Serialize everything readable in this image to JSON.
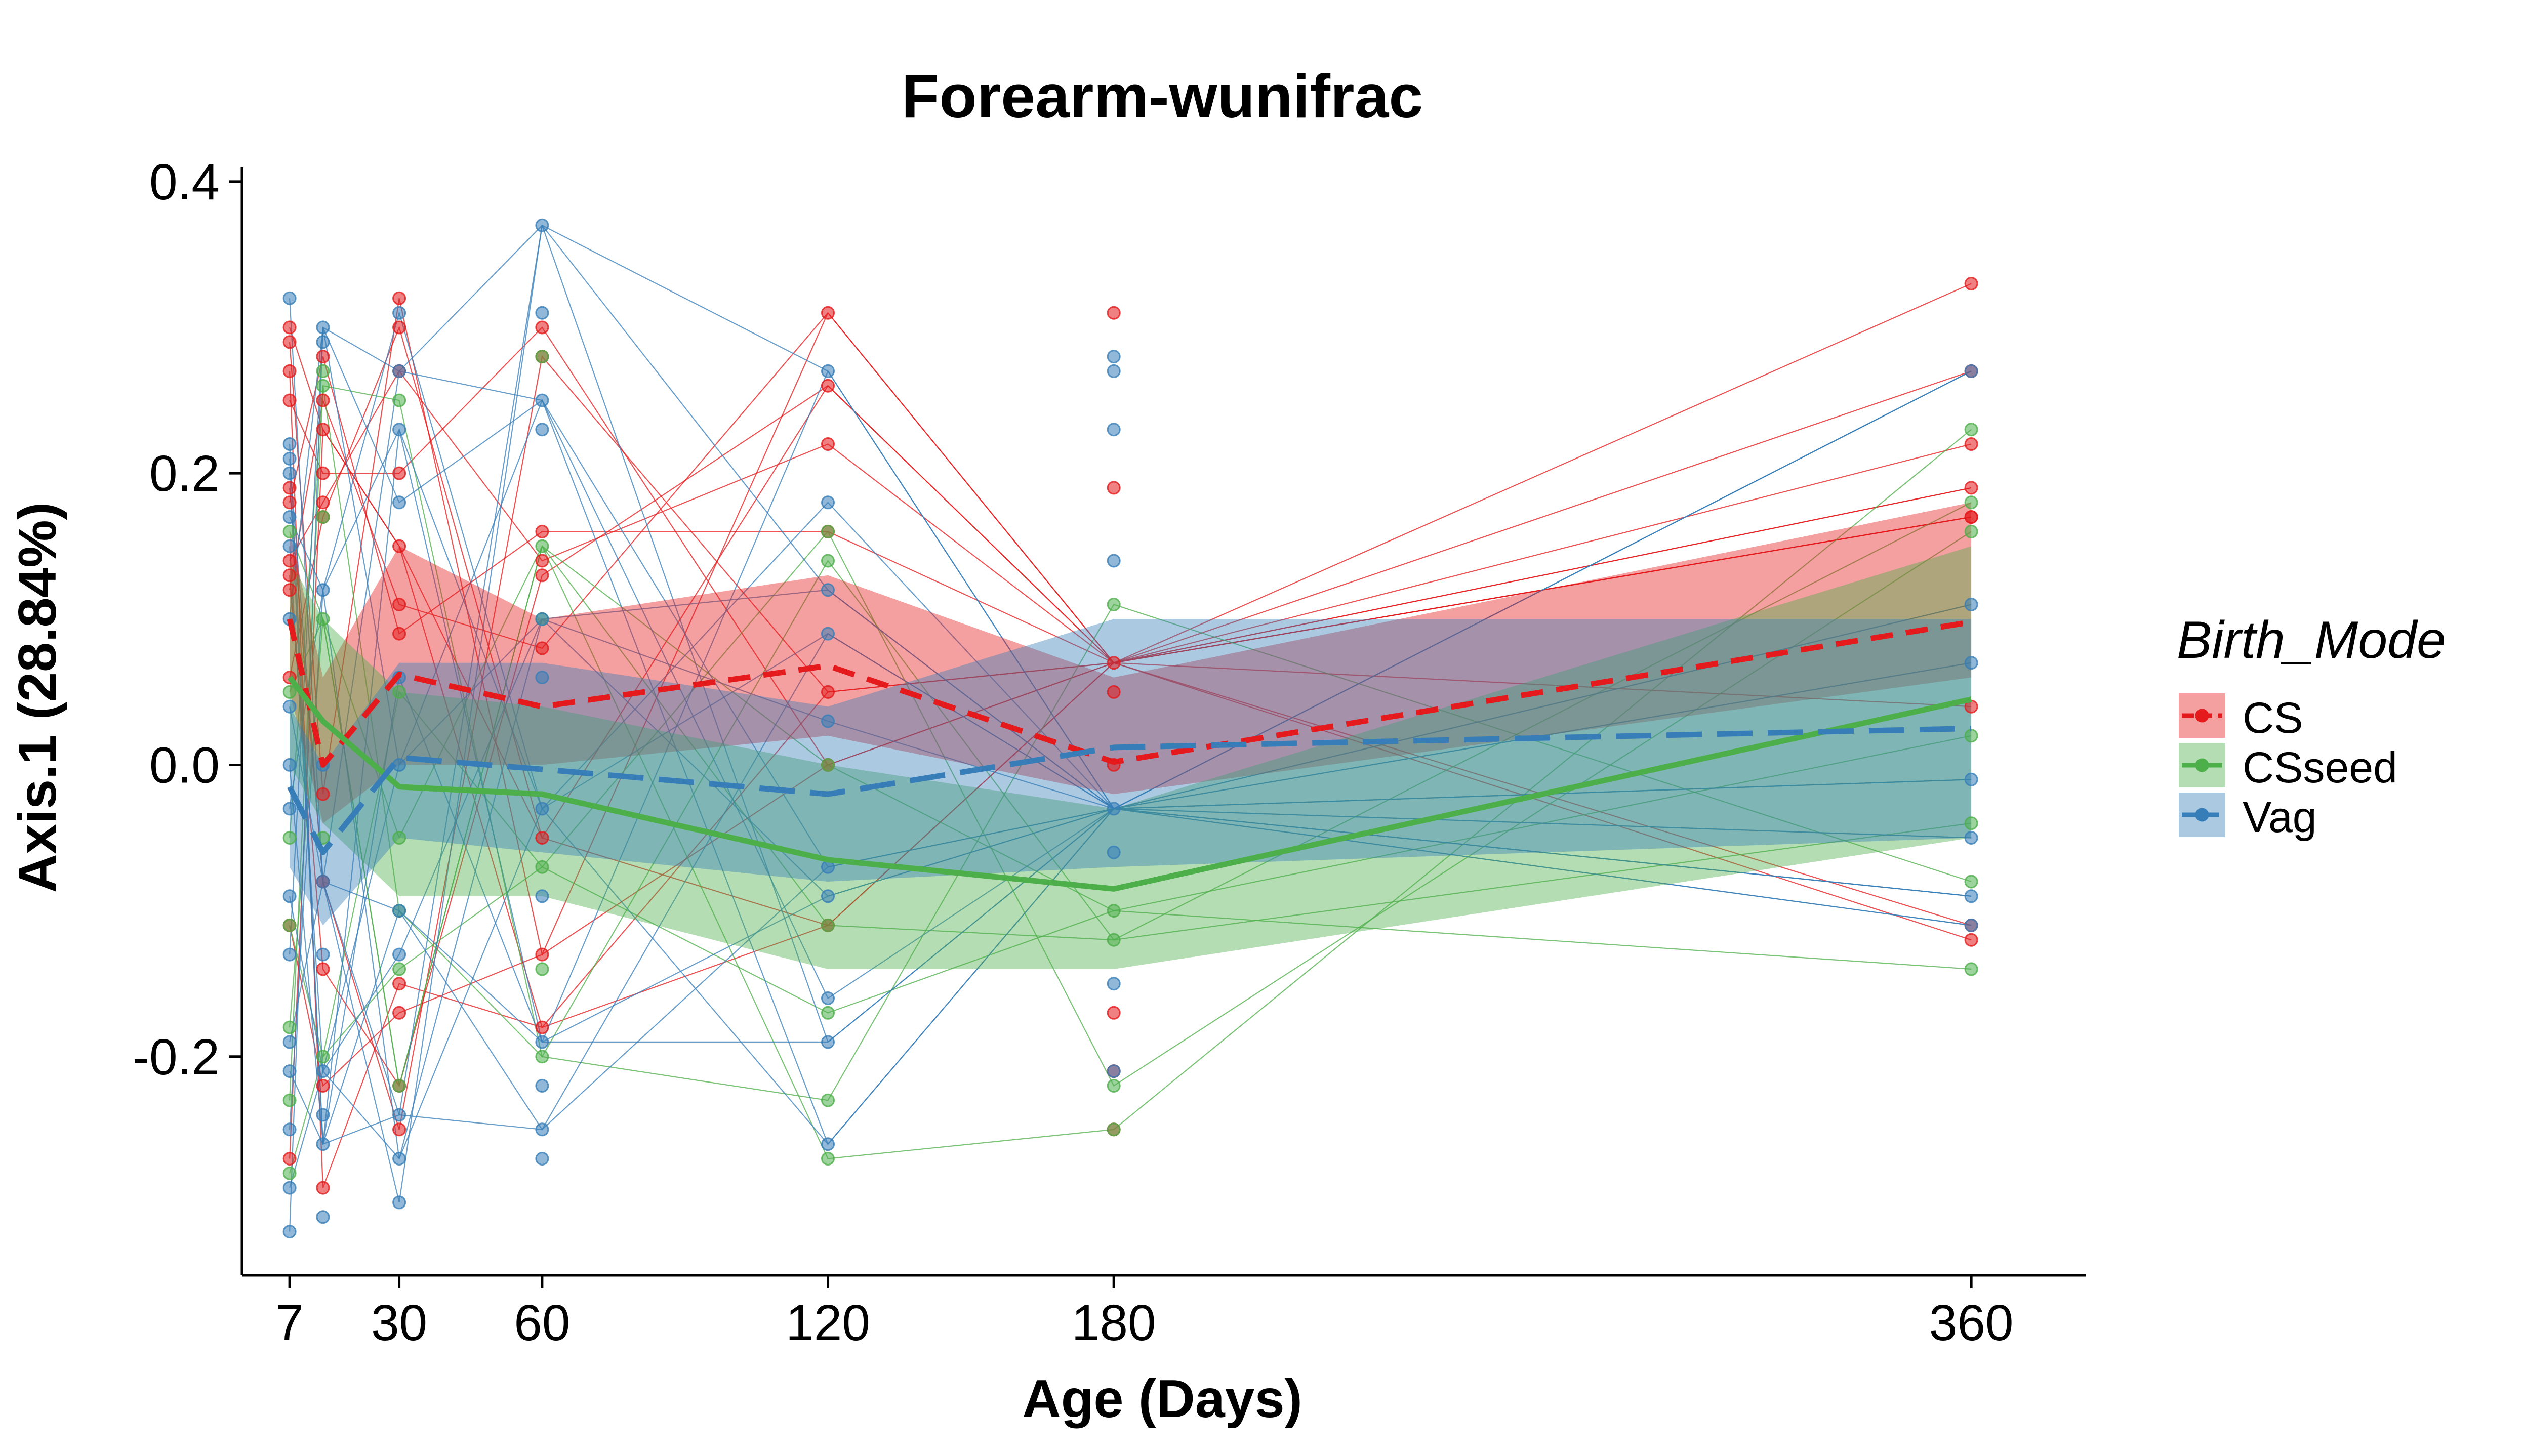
{
  "chart_data": {
    "type": "line",
    "title": "Forearm-wunifrac",
    "xlabel": "Age (Days)",
    "ylabel": "Axis.1 (28.84%)",
    "xlim": [
      -3,
      384
    ],
    "ylim": [
      -0.35,
      0.41
    ],
    "x_ticks": [
      7,
      30,
      60,
      120,
      180,
      360
    ],
    "x_tick_labels": [
      "7",
      "30",
      "60",
      "120",
      "180",
      "360"
    ],
    "y_ticks": [
      -0.2,
      0.0,
      0.2,
      0.4
    ],
    "y_tick_labels": [
      "-0.2",
      "0.0",
      "0.2",
      "0.4"
    ],
    "legend": {
      "title": "Birth_Mode",
      "position": "right"
    },
    "grid": false,
    "series": [
      {
        "name": "CS",
        "color": "#E41A1C",
        "linetype": "dashed",
        "mean": [
          [
            7,
            0.1
          ],
          [
            14,
            0.0
          ],
          [
            30,
            0.062
          ],
          [
            60,
            0.04
          ],
          [
            120,
            0.068
          ],
          [
            180,
            0.002
          ],
          [
            360,
            0.098
          ]
        ],
        "ribbon_low": [
          [
            7,
            0.05
          ],
          [
            14,
            -0.04
          ],
          [
            30,
            0.0
          ],
          [
            60,
            0.0
          ],
          [
            120,
            0.02
          ],
          [
            180,
            -0.02
          ],
          [
            360,
            0.06
          ]
        ],
        "ribbon_high": [
          [
            7,
            0.16
          ],
          [
            14,
            0.06
          ],
          [
            30,
            0.15
          ],
          [
            60,
            0.1
          ],
          [
            120,
            0.13
          ],
          [
            180,
            0.06
          ],
          [
            360,
            0.18
          ]
        ],
        "points": [
          [
            7,
            0.3
          ],
          [
            7,
            0.29
          ],
          [
            7,
            0.27
          ],
          [
            7,
            0.25
          ],
          [
            7,
            0.19
          ],
          [
            7,
            0.18
          ],
          [
            7,
            0.14
          ],
          [
            7,
            0.13
          ],
          [
            7,
            0.12
          ],
          [
            7,
            0.06
          ],
          [
            7,
            -0.11
          ],
          [
            7,
            -0.27
          ],
          [
            14,
            0.28
          ],
          [
            14,
            0.25
          ],
          [
            14,
            0.23
          ],
          [
            14,
            0.2
          ],
          [
            14,
            0.18
          ],
          [
            14,
            0.17
          ],
          [
            14,
            -0.02
          ],
          [
            14,
            -0.08
          ],
          [
            14,
            -0.14
          ],
          [
            14,
            -0.22
          ],
          [
            14,
            -0.29
          ],
          [
            30,
            0.32
          ],
          [
            30,
            0.3
          ],
          [
            30,
            0.27
          ],
          [
            30,
            0.2
          ],
          [
            30,
            0.15
          ],
          [
            30,
            0.11
          ],
          [
            30,
            0.09
          ],
          [
            30,
            -0.15
          ],
          [
            30,
            -0.17
          ],
          [
            30,
            -0.22
          ],
          [
            30,
            -0.25
          ],
          [
            60,
            0.3
          ],
          [
            60,
            0.28
          ],
          [
            60,
            0.16
          ],
          [
            60,
            0.14
          ],
          [
            60,
            0.13
          ],
          [
            60,
            0.08
          ],
          [
            60,
            -0.05
          ],
          [
            60,
            -0.13
          ],
          [
            60,
            -0.18
          ],
          [
            120,
            0.31
          ],
          [
            120,
            0.26
          ],
          [
            120,
            0.22
          ],
          [
            120,
            0.16
          ],
          [
            120,
            0.05
          ],
          [
            120,
            0.0
          ],
          [
            120,
            -0.11
          ],
          [
            180,
            0.31
          ],
          [
            180,
            0.19
          ],
          [
            180,
            0.07
          ],
          [
            180,
            0.05
          ],
          [
            180,
            0.0
          ],
          [
            180,
            -0.17
          ],
          [
            180,
            -0.21
          ],
          [
            180,
            -0.25
          ],
          [
            360,
            0.33
          ],
          [
            360,
            0.27
          ],
          [
            360,
            0.22
          ],
          [
            360,
            0.19
          ],
          [
            360,
            0.17
          ],
          [
            360,
            0.17
          ],
          [
            360,
            0.04
          ],
          [
            360,
            -0.11
          ],
          [
            360,
            -0.12
          ]
        ]
      },
      {
        "name": "CSseed",
        "color": "#4DAF4A",
        "linetype": "solid",
        "mean": [
          [
            7,
            0.06
          ],
          [
            14,
            0.03
          ],
          [
            30,
            -0.015
          ],
          [
            60,
            -0.02
          ],
          [
            120,
            -0.065
          ],
          [
            180,
            -0.085
          ],
          [
            360,
            0.045
          ]
        ],
        "ribbon_low": [
          [
            7,
            0.0
          ],
          [
            14,
            -0.04
          ],
          [
            30,
            -0.09
          ],
          [
            60,
            -0.09
          ],
          [
            120,
            -0.14
          ],
          [
            180,
            -0.14
          ],
          [
            360,
            -0.05
          ]
        ],
        "ribbon_high": [
          [
            7,
            0.14
          ],
          [
            14,
            0.1
          ],
          [
            30,
            0.05
          ],
          [
            60,
            0.04
          ],
          [
            120,
            0.0
          ],
          [
            180,
            -0.03
          ],
          [
            360,
            0.15
          ]
        ],
        "points": [
          [
            7,
            0.16
          ],
          [
            7,
            0.05
          ],
          [
            7,
            -0.05
          ],
          [
            7,
            -0.11
          ],
          [
            7,
            -0.18
          ],
          [
            7,
            -0.23
          ],
          [
            7,
            -0.28
          ],
          [
            14,
            0.27
          ],
          [
            14,
            0.26
          ],
          [
            14,
            0.17
          ],
          [
            14,
            0.1
          ],
          [
            14,
            -0.05
          ],
          [
            14,
            -0.2
          ],
          [
            30,
            0.25
          ],
          [
            30,
            0.05
          ],
          [
            30,
            -0.05
          ],
          [
            30,
            -0.1
          ],
          [
            30,
            -0.14
          ],
          [
            30,
            -0.22
          ],
          [
            60,
            0.28
          ],
          [
            60,
            0.15
          ],
          [
            60,
            0.1
          ],
          [
            60,
            -0.07
          ],
          [
            60,
            -0.14
          ],
          [
            60,
            -0.2
          ],
          [
            120,
            0.16
          ],
          [
            120,
            0.14
          ],
          [
            120,
            0.0
          ],
          [
            120,
            -0.11
          ],
          [
            120,
            -0.17
          ],
          [
            120,
            -0.23
          ],
          [
            120,
            -0.27
          ],
          [
            180,
            0.11
          ],
          [
            180,
            -0.1
          ],
          [
            180,
            -0.12
          ],
          [
            180,
            -0.22
          ],
          [
            180,
            -0.25
          ],
          [
            360,
            0.23
          ],
          [
            360,
            0.18
          ],
          [
            360,
            0.16
          ],
          [
            360,
            0.02
          ],
          [
            360,
            -0.04
          ],
          [
            360,
            -0.08
          ],
          [
            360,
            -0.14
          ]
        ]
      },
      {
        "name": "Vag",
        "color": "#377EB8",
        "linetype": "longdash",
        "mean": [
          [
            7,
            -0.015
          ],
          [
            14,
            -0.06
          ],
          [
            30,
            0.005
          ],
          [
            60,
            -0.003
          ],
          [
            120,
            -0.02
          ],
          [
            180,
            0.012
          ],
          [
            360,
            0.025
          ]
        ],
        "ribbon_low": [
          [
            7,
            -0.07
          ],
          [
            14,
            -0.11
          ],
          [
            30,
            -0.05
          ],
          [
            60,
            -0.06
          ],
          [
            120,
            -0.08
          ],
          [
            180,
            -0.07
          ],
          [
            360,
            -0.05
          ]
        ],
        "ribbon_high": [
          [
            7,
            0.04
          ],
          [
            14,
            0.0
          ],
          [
            30,
            0.07
          ],
          [
            60,
            0.07
          ],
          [
            120,
            0.04
          ],
          [
            180,
            0.1
          ],
          [
            360,
            0.1
          ]
        ],
        "points": [
          [
            7,
            0.32
          ],
          [
            7,
            0.22
          ],
          [
            7,
            0.21
          ],
          [
            7,
            0.2
          ],
          [
            7,
            0.17
          ],
          [
            7,
            0.15
          ],
          [
            7,
            0.1
          ],
          [
            7,
            0.04
          ],
          [
            7,
            0.0
          ],
          [
            7,
            -0.03
          ],
          [
            7,
            -0.09
          ],
          [
            7,
            -0.13
          ],
          [
            7,
            -0.19
          ],
          [
            7,
            -0.21
          ],
          [
            7,
            -0.25
          ],
          [
            7,
            -0.29
          ],
          [
            7,
            -0.32
          ],
          [
            14,
            0.3
          ],
          [
            14,
            0.29
          ],
          [
            14,
            0.12
          ],
          [
            14,
            0.0
          ],
          [
            14,
            -0.08
          ],
          [
            14,
            -0.13
          ],
          [
            14,
            -0.21
          ],
          [
            14,
            -0.24
          ],
          [
            14,
            -0.26
          ],
          [
            14,
            -0.31
          ],
          [
            30,
            0.31
          ],
          [
            30,
            0.27
          ],
          [
            30,
            0.23
          ],
          [
            30,
            0.18
          ],
          [
            30,
            0.06
          ],
          [
            30,
            0.0
          ],
          [
            30,
            -0.1
          ],
          [
            30,
            -0.13
          ],
          [
            30,
            -0.24
          ],
          [
            30,
            -0.27
          ],
          [
            30,
            -0.3
          ],
          [
            60,
            0.37
          ],
          [
            60,
            0.31
          ],
          [
            60,
            0.25
          ],
          [
            60,
            0.23
          ],
          [
            60,
            0.1
          ],
          [
            60,
            0.06
          ],
          [
            60,
            -0.03
          ],
          [
            60,
            -0.09
          ],
          [
            60,
            -0.19
          ],
          [
            60,
            -0.22
          ],
          [
            60,
            -0.25
          ],
          [
            60,
            -0.27
          ],
          [
            120,
            0.27
          ],
          [
            120,
            0.18
          ],
          [
            120,
            0.12
          ],
          [
            120,
            0.09
          ],
          [
            120,
            0.03
          ],
          [
            120,
            -0.07
          ],
          [
            120,
            -0.09
          ],
          [
            120,
            -0.16
          ],
          [
            120,
            -0.19
          ],
          [
            120,
            -0.26
          ],
          [
            180,
            0.28
          ],
          [
            180,
            0.27
          ],
          [
            180,
            0.23
          ],
          [
            180,
            0.14
          ],
          [
            180,
            -0.03
          ],
          [
            180,
            -0.06
          ],
          [
            180,
            -0.15
          ],
          [
            180,
            -0.21
          ],
          [
            360,
            0.27
          ],
          [
            360,
            0.11
          ],
          [
            360,
            0.07
          ],
          [
            360,
            -0.01
          ],
          [
            360,
            -0.05
          ],
          [
            360,
            -0.09
          ],
          [
            360,
            -0.11
          ]
        ]
      }
    ]
  }
}
